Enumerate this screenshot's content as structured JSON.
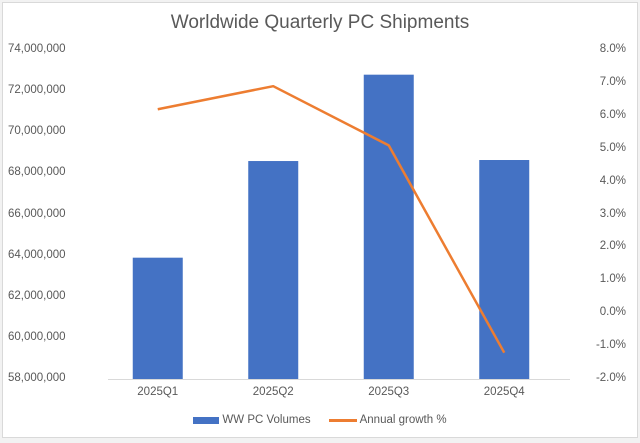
{
  "chart_data": {
    "type": "bar+line",
    "title": "Worldwide Quarterly PC Shipments",
    "categories": [
      "2025Q1",
      "2025Q2",
      "2025Q3",
      "2025Q4"
    ],
    "series": [
      {
        "name": "WW PC Volumes",
        "type": "bar",
        "axis": "left",
        "color": "#4472c4",
        "values": [
          63900000,
          68600000,
          72800000,
          68650000
        ]
      },
      {
        "name": "Annual growth %",
        "type": "line",
        "axis": "right",
        "color": "#ed7d31",
        "values": [
          6.2,
          6.9,
          5.1,
          -1.2
        ]
      }
    ],
    "y_left": {
      "min": 58000000,
      "max": 74000000,
      "step": 2000000,
      "ticks": [
        "74,000,000",
        "72,000,000",
        "70,000,000",
        "68,000,000",
        "66,000,000",
        "64,000,000",
        "62,000,000",
        "60,000,000",
        "58,000,000"
      ]
    },
    "y_right": {
      "min": -2.0,
      "max": 8.0,
      "step": 1.0,
      "ticks": [
        "8.0%",
        "7.0%",
        "6.0%",
        "5.0%",
        "4.0%",
        "3.0%",
        "2.0%",
        "1.0%",
        "0.0%",
        "-1.0%",
        "-2.0%"
      ]
    },
    "xlabel": "",
    "ylabel": "",
    "grid": false,
    "legend_position": "bottom"
  },
  "legend": {
    "bar_label": "WW PC Volumes",
    "line_label": "Annual growth %"
  }
}
